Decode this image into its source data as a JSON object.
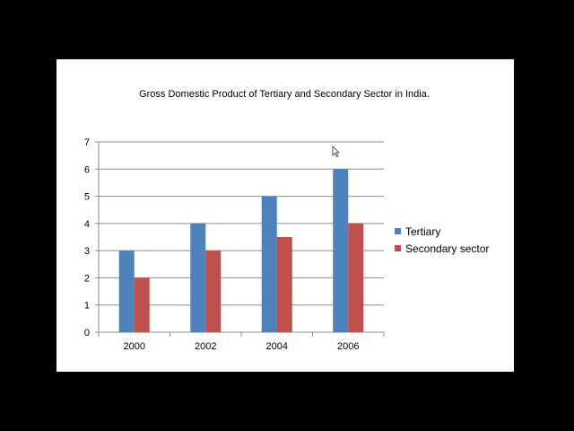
{
  "chart_data": {
    "type": "bar",
    "title": "Gross Domestic Product of Tertiary and Secondary Sector  in India.",
    "categories": [
      "2000",
      "2002",
      "2004",
      "2006"
    ],
    "series": [
      {
        "name": "Tertiary",
        "values": [
          3,
          4,
          5,
          6
        ],
        "color": "#4F81BD"
      },
      {
        "name": "Secondary sector",
        "values": [
          2,
          3,
          3.5,
          4
        ],
        "color": "#C0504D"
      }
    ],
    "ylim": [
      0,
      7
    ],
    "yticks": [
      "0",
      "1",
      "2",
      "3",
      "4",
      "5",
      "6",
      "7"
    ],
    "grid": true,
    "legend": "right"
  }
}
